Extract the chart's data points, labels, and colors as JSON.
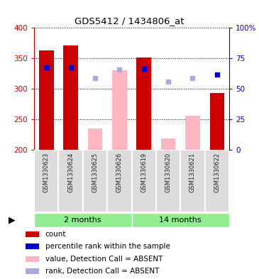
{
  "title": "GDS5412 / 1434806_at",
  "samples": [
    "GSM1330623",
    "GSM1330624",
    "GSM1330625",
    "GSM1330626",
    "GSM1330619",
    "GSM1330620",
    "GSM1330621",
    "GSM1330622"
  ],
  "groups": [
    {
      "label": "2 months",
      "indices": [
        0,
        1,
        2,
        3
      ],
      "color": "#90EE90"
    },
    {
      "label": "14 months",
      "indices": [
        4,
        5,
        6,
        7
      ],
      "color": "#90EE90"
    }
  ],
  "count_values": [
    363,
    371,
    null,
    null,
    351,
    null,
    null,
    293
  ],
  "count_color": "#CC0000",
  "absent_bar_values": [
    null,
    null,
    235,
    330,
    null,
    219,
    256,
    null
  ],
  "absent_bar_color": "#FFB6C1",
  "rank_dot_values": [
    null,
    null,
    318,
    332,
    null,
    312,
    318,
    null
  ],
  "rank_dot_color": "#AAAADD",
  "percentile_dot_values": [
    335,
    335,
    null,
    null,
    333,
    null,
    null,
    323
  ],
  "percentile_dot_color": "#0000CC",
  "ylim": [
    200,
    400
  ],
  "yticks": [
    200,
    250,
    300,
    350,
    400
  ],
  "y2lim": [
    0,
    100
  ],
  "y2ticks": [
    0,
    25,
    50,
    75,
    100
  ],
  "bar_width": 0.6,
  "legend": [
    {
      "label": "count",
      "color": "#CC0000"
    },
    {
      "label": "percentile rank within the sample",
      "color": "#0000CC"
    },
    {
      "label": "value, Detection Call = ABSENT",
      "color": "#FFB6C1"
    },
    {
      "label": "rank, Detection Call = ABSENT",
      "color": "#AAAADD"
    }
  ],
  "bg_color": "#DCDCDC",
  "x_label_color": "#222222",
  "left_axis_color": "#CC0000",
  "right_axis_color": "#0000CC",
  "grid_color": "#000000",
  "plot_bg": "#FFFFFF",
  "group_color": "#90EE90"
}
